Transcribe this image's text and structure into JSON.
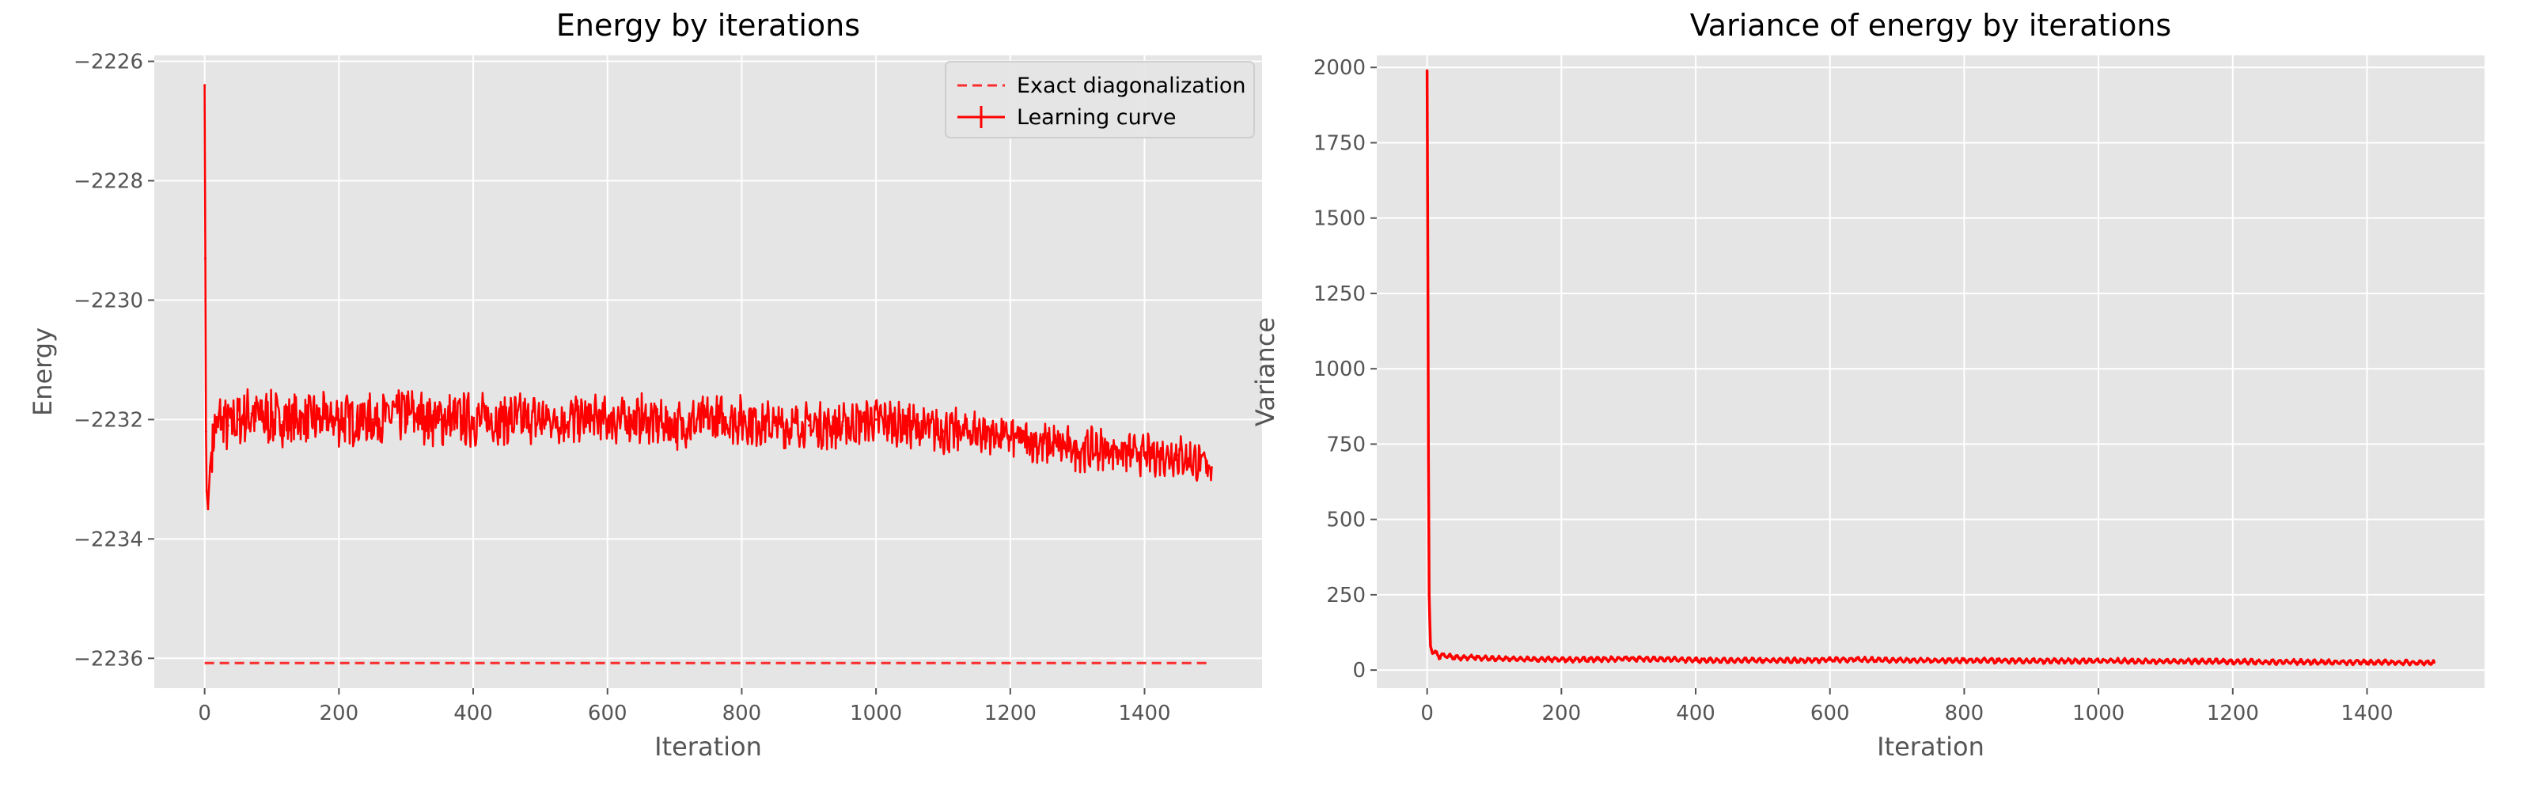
{
  "chart_data": [
    {
      "type": "line",
      "title": "Energy by iterations",
      "xlabel": "Iteration",
      "ylabel": "Energy",
      "xlim": [
        -75,
        1575
      ],
      "ylim": [
        -2236.5,
        -2225.9
      ],
      "xticks": [
        0,
        200,
        400,
        600,
        800,
        1000,
        1200,
        1400
      ],
      "yticks": [
        -2236,
        -2234,
        -2232,
        -2230,
        -2228,
        -2226
      ],
      "ytick_labels": [
        "−2236",
        "−2234",
        "−2232",
        "−2230",
        "−2228",
        "−2226"
      ],
      "grid": true,
      "legend_position": "top-right",
      "color": "#ff0000",
      "series": [
        {
          "name": "Exact diagonalization",
          "style": "dashed",
          "x": [
            0,
            1500
          ],
          "y": [
            -2236.08,
            -2236.08
          ]
        },
        {
          "name": "Learning curve",
          "style": "solid-errorbar",
          "x": [
            0,
            1,
            2,
            3,
            5,
            8,
            12,
            18,
            25,
            35,
            50,
            70,
            100,
            150,
            200,
            250,
            300,
            350,
            400,
            450,
            500,
            550,
            600,
            650,
            700,
            750,
            800,
            850,
            900,
            950,
            1000,
            1050,
            1100,
            1150,
            1200,
            1250,
            1300,
            1350,
            1400,
            1450,
            1500
          ],
          "y": [
            -2226.4,
            -2229.3,
            -2232.2,
            -2233.2,
            -2233.5,
            -2232.8,
            -2232.3,
            -2232.1,
            -2232.0,
            -2232.1,
            -2232.0,
            -2231.9,
            -2232.0,
            -2232.0,
            -2232.0,
            -2232.0,
            -2231.9,
            -2232.0,
            -2232.0,
            -2232.0,
            -2232.0,
            -2232.0,
            -2232.0,
            -2232.0,
            -2232.1,
            -2232.0,
            -2232.0,
            -2232.1,
            -2232.1,
            -2232.1,
            -2232.0,
            -2232.1,
            -2232.2,
            -2232.2,
            -2232.3,
            -2232.4,
            -2232.5,
            -2232.5,
            -2232.6,
            -2232.6,
            -2232.8
          ]
        }
      ]
    },
    {
      "type": "line",
      "title": "Variance of energy by iterations",
      "xlabel": "Iteration",
      "ylabel": "Variance",
      "xlim": [
        -75,
        1575
      ],
      "ylim": [
        -60,
        2040
      ],
      "xticks": [
        0,
        200,
        400,
        600,
        800,
        1000,
        1200,
        1400
      ],
      "yticks": [
        0,
        250,
        500,
        750,
        1000,
        1250,
        1500,
        1750,
        2000
      ],
      "grid": true,
      "color": "#ff0000",
      "series": [
        {
          "style": "solid",
          "x": [
            0,
            1,
            2,
            3,
            5,
            8,
            12,
            18,
            25,
            35,
            50,
            70,
            100,
            150,
            200,
            250,
            300,
            350,
            400,
            450,
            500,
            550,
            600,
            650,
            700,
            750,
            800,
            850,
            900,
            950,
            1000,
            1050,
            1100,
            1150,
            1200,
            1250,
            1300,
            1350,
            1400,
            1450,
            1500
          ],
          "y": [
            1990,
            1400,
            700,
            250,
            80,
            55,
            60,
            45,
            50,
            45,
            40,
            42,
            38,
            36,
            35,
            35,
            38,
            36,
            33,
            32,
            33,
            32,
            34,
            35,
            33,
            32,
            32,
            31,
            30,
            30,
            31,
            30,
            29,
            29,
            28,
            27,
            27,
            26,
            26,
            25,
            25
          ]
        }
      ]
    }
  ]
}
